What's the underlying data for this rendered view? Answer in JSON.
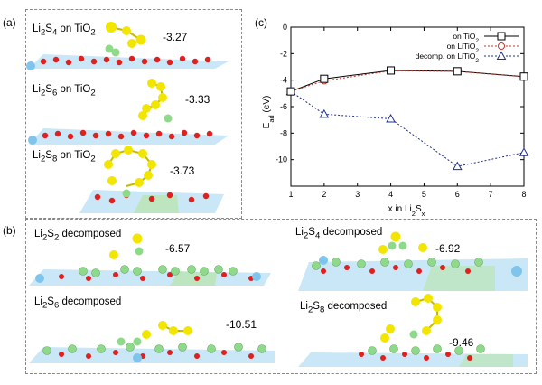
{
  "panel_a": {
    "letter": "(a)",
    "items": [
      {
        "formula": {
          "base": "Li",
          "sub1": "2",
          "mid": "S",
          "sub2": "4"
        },
        "suffix": " on TiO",
        "suffix_sub": "2",
        "energy": "-3.27"
      },
      {
        "formula": {
          "base": "Li",
          "sub1": "2",
          "mid": "S",
          "sub2": "6"
        },
        "suffix": " on TiO",
        "suffix_sub": "2",
        "energy": "-3.33"
      },
      {
        "formula": {
          "base": "Li",
          "sub1": "2",
          "mid": "S",
          "sub2": "8"
        },
        "suffix": " on TiO",
        "suffix_sub": "2",
        "energy": "-3.73"
      }
    ]
  },
  "panel_b": {
    "letter": "(b)",
    "items": [
      {
        "formula": {
          "base": "Li",
          "sub1": "2",
          "mid": "S",
          "sub2": "2"
        },
        "suffix": " decomposed",
        "energy": "-6.57"
      },
      {
        "formula": {
          "base": "Li",
          "sub1": "2",
          "mid": "S",
          "sub2": "4"
        },
        "suffix": " decomposed",
        "energy": "-6.92"
      },
      {
        "formula": {
          "base": "Li",
          "sub1": "2",
          "mid": "S",
          "sub2": "6"
        },
        "suffix": " decomposed",
        "energy": "-10.51"
      },
      {
        "formula": {
          "base": "Li",
          "sub1": "2",
          "mid": "S",
          "sub2": "8"
        },
        "suffix": " decomposed",
        "energy": "-9.46"
      }
    ]
  },
  "panel_c": {
    "letter": "(c)"
  },
  "colors": {
    "sulfur": "#f2e600",
    "lithium": "#8fd98a",
    "oxygen": "#e0201e",
    "titanium": "#7fc4ec",
    "series_tio2": "#000000",
    "series_litio2": "#c0392b",
    "series_decomp": "#1f2f8f"
  },
  "chart_data": {
    "type": "line",
    "title": "",
    "xlabel": {
      "base": "x in Li",
      "sub1": "2",
      "mid": "S",
      "sub2": "x"
    },
    "ylabel": {
      "base": "E",
      "sub": "ad",
      "tail": " (eV)"
    },
    "xlim": [
      1,
      8
    ],
    "ylim": [
      -12,
      0
    ],
    "xticks": [
      1,
      2,
      3,
      4,
      5,
      6,
      7,
      8
    ],
    "yticks": [
      0,
      -2,
      -4,
      -6,
      -8,
      -10
    ],
    "x": [
      1,
      2,
      4,
      6,
      8
    ],
    "series": [
      {
        "name": "on TiO",
        "name_sub": "2",
        "marker": "square",
        "style": "solid",
        "values": [
          -4.85,
          -3.9,
          -3.27,
          -3.33,
          -3.73
        ]
      },
      {
        "name": "on LiTiO",
        "name_sub": "2",
        "marker": "circle",
        "style": "dotted",
        "values": [
          -4.85,
          -4.05,
          -3.3,
          -3.35,
          -3.75
        ]
      },
      {
        "name": "decomp. on LiTiO",
        "name_sub": "2",
        "marker": "triangle",
        "style": "dotted",
        "values": [
          -4.85,
          -6.57,
          -6.92,
          -10.51,
          -9.46
        ]
      }
    ],
    "legend": "top-right"
  }
}
